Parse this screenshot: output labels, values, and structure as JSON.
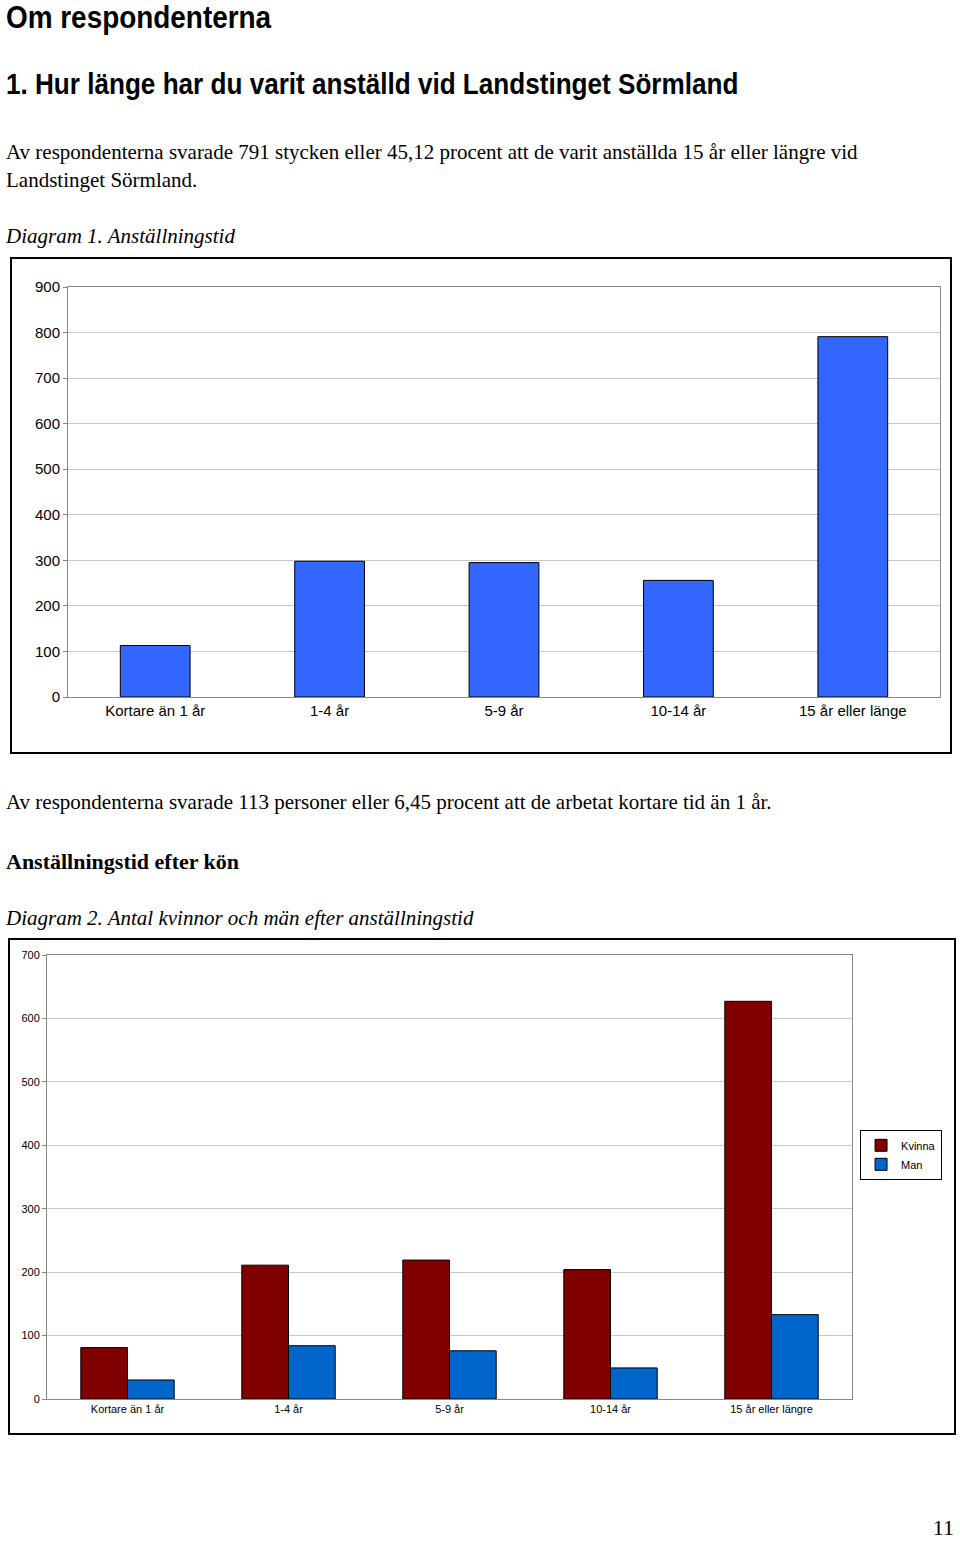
{
  "heading": "Om respondenterna",
  "question": "1. Hur länge har du varit anställd vid Landstinget Sörmland",
  "paragraph1": "Av respondenterna svarade 791 stycken eller 45,12 procent att de varit anställda 15 år eller längre vid Landstinget Sörmland.",
  "paragraph2": "Av respondenterna svarade 113 personer eller 6,45 procent att de arbetat kortare tid än 1 år.",
  "subheading": "Anställningstid efter kön",
  "page_number": "11",
  "chart_data": [
    {
      "type": "bar",
      "title": "Diagram 1. Anställningstid",
      "categories": [
        "Kortare än 1 år",
        "1-4 år",
        "5-9 år",
        "10-14 år",
        "15 år eller länge"
      ],
      "values": [
        113,
        298,
        295,
        256,
        791
      ],
      "color": "#3366ff",
      "ylim": [
        0,
        900
      ],
      "yticks": [
        0,
        100,
        200,
        300,
        400,
        500,
        600,
        700,
        800,
        900
      ],
      "grid": true
    },
    {
      "type": "bar",
      "title": "Diagram 2. Antal kvinnor och män efter anställningstid",
      "categories": [
        "Kortare än 1 år",
        "1-4 år",
        "5-9 år",
        "10-14 år",
        "15 år eller längre"
      ],
      "series": [
        {
          "name": "Kvinna",
          "color": "#800000",
          "values": [
            81,
            211,
            219,
            204,
            627
          ]
        },
        {
          "name": "Man",
          "color": "#0066cc",
          "values": [
            30,
            84,
            76,
            49,
            133
          ]
        }
      ],
      "ylim": [
        0,
        700
      ],
      "yticks": [
        0,
        100,
        200,
        300,
        400,
        500,
        600,
        700
      ],
      "grid": true,
      "legend": "right"
    }
  ]
}
